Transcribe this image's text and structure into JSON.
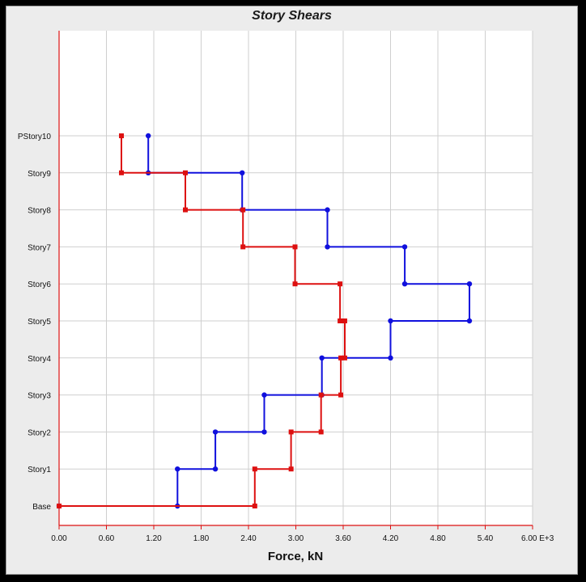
{
  "chart_data": {
    "type": "line",
    "title": "Story Shears",
    "xlabel": "Force, kN",
    "x_ticks": [
      "0.00",
      "0.60",
      "1.20",
      "1.80",
      "2.40",
      "3.00",
      "3.60",
      "4.20",
      "4.80",
      "5.40",
      "6.00"
    ],
    "x_scale_suffix": "E+3",
    "xlim": [
      0,
      6.0
    ],
    "categories": [
      "Base",
      "Story1",
      "Story2",
      "Story3",
      "Story4",
      "Story5",
      "Story6",
      "Story7",
      "Story8",
      "Story9",
      "PStory10"
    ],
    "grid": true,
    "series": [
      {
        "color": "#1010dd",
        "marker": "circle",
        "points": [
          [
            0.0,
            "Base"
          ],
          [
            1.5,
            "Base"
          ],
          [
            1.5,
            "Story1"
          ],
          [
            1.98,
            "Story1"
          ],
          [
            1.98,
            "Story2"
          ],
          [
            2.6,
            "Story2"
          ],
          [
            2.6,
            "Story3"
          ],
          [
            3.33,
            "Story3"
          ],
          [
            3.33,
            "Story4"
          ],
          [
            4.2,
            "Story4"
          ],
          [
            4.2,
            "Story5"
          ],
          [
            5.2,
            "Story5"
          ],
          [
            5.2,
            "Story6"
          ],
          [
            4.38,
            "Story6"
          ],
          [
            4.38,
            "Story7"
          ],
          [
            3.4,
            "Story7"
          ],
          [
            3.4,
            "Story8"
          ],
          [
            2.32,
            "Story8"
          ],
          [
            2.32,
            "Story9"
          ],
          [
            1.13,
            "Story9"
          ],
          [
            1.13,
            "PStory10"
          ]
        ]
      },
      {
        "color": "#dd1010",
        "marker": "square",
        "points": [
          [
            0.0,
            "Base"
          ],
          [
            2.48,
            "Base"
          ],
          [
            2.48,
            "Story1"
          ],
          [
            2.94,
            "Story1"
          ],
          [
            2.94,
            "Story2"
          ],
          [
            3.32,
            "Story2"
          ],
          [
            3.32,
            "Story3"
          ],
          [
            3.57,
            "Story3"
          ],
          [
            3.57,
            "Story4"
          ],
          [
            3.62,
            "Story4"
          ],
          [
            3.62,
            "Story5"
          ],
          [
            3.56,
            "Story5"
          ],
          [
            3.56,
            "Story6"
          ],
          [
            2.99,
            "Story6"
          ],
          [
            2.99,
            "Story7"
          ],
          [
            2.33,
            "Story7"
          ],
          [
            2.33,
            "Story8"
          ],
          [
            1.6,
            "Story8"
          ],
          [
            1.6,
            "Story9"
          ],
          [
            0.79,
            "Story9"
          ],
          [
            0.79,
            "PStory10"
          ]
        ]
      }
    ]
  }
}
